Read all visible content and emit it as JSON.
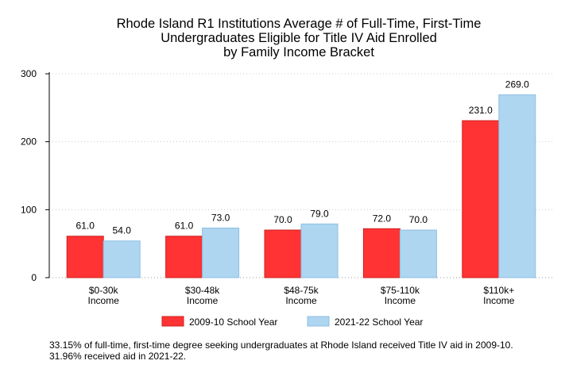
{
  "chart_data": {
    "type": "bar",
    "title_lines": [
      "Rhode Island R1 Institutions Average # of Full-Time, First-Time",
      "Undergraduates Eligible for Title IV Aid Enrolled",
      "by Family Income Bracket"
    ],
    "categories": [
      [
        "$0-30k",
        "Income"
      ],
      [
        "$30-48k",
        "Income"
      ],
      [
        "$48-75k",
        "Income"
      ],
      [
        "$75-110k",
        "Income"
      ],
      [
        "$110k+",
        "Income"
      ]
    ],
    "series": [
      {
        "name": "2009-10 School Year",
        "values": [
          61.0,
          61.0,
          70.0,
          72.0,
          231.0
        ],
        "labels": [
          "61.0",
          "61.0",
          "70.0",
          "72.0",
          "231.0"
        ],
        "color": "#ff3333"
      },
      {
        "name": "2021-22 School Year",
        "values": [
          54.0,
          73.0,
          79.0,
          70.0,
          269.0
        ],
        "labels": [
          "54.0",
          "73.0",
          "79.0",
          "70.0",
          "269.0"
        ],
        "color": "#aed6f1"
      }
    ],
    "ylim": [
      0,
      300
    ],
    "yticks": [
      "0",
      "100",
      "200",
      "300"
    ],
    "grid": true,
    "legend_position": "bottom"
  },
  "footnote": "33.15% of full-time, first-time degree seeking undergraduates at Rhode Island received Title IV aid in 2009-10. 31.96% received aid in 2021-22."
}
